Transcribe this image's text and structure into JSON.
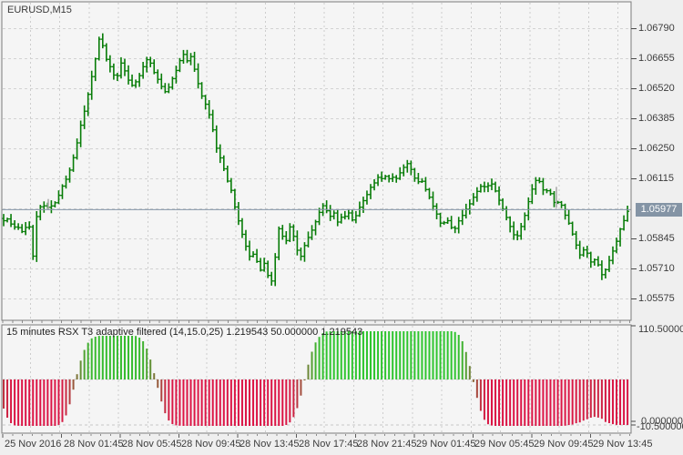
{
  "window": {
    "symbol_label": "EURUSD,M15"
  },
  "price_axis": {
    "tick_labels": [
      "1.06790",
      "1.06655",
      "1.06520",
      "1.06385",
      "1.06250",
      "1.06115",
      "1.05845",
      "1.05710",
      "1.05575"
    ],
    "current_price": "1.05977"
  },
  "time_axis": {
    "labels": [
      "25 Nov 2016",
      "28 Nov 01:45",
      "28 Nov 05:45",
      "28 Nov 09:45",
      "28 Nov 13:45",
      "28 Nov 17:45",
      "28 Nov 21:45",
      "29 Nov 01:45",
      "29 Nov 05:45",
      "29 Nov 09:45",
      "29 Nov 13:45"
    ]
  },
  "indicator": {
    "label": "15 minutes RSX T3 adaptive filtered (14,15.0,25) 1.219543 50.000000 1.219543",
    "axis_labels": {
      "top": "110.500000",
      "zero": "0.000000",
      "min": "-10.500000"
    }
  },
  "chart_data": [
    {
      "type": "ohlc-bar",
      "symbol": "EURUSD",
      "timeframe": "M15",
      "title": "EURUSD,M15",
      "bar_color": "#077c07",
      "gray_bar_color": "#ababab",
      "price_line_color": "#8495a7",
      "current_price": 1.05977,
      "ylim": [
        1.0551,
        1.06925
      ],
      "y_tick_step": 0.00135,
      "y_ticks": [
        1.0679,
        1.06655,
        1.0652,
        1.06385,
        1.0625,
        1.06115,
        1.0598,
        1.05845,
        1.0571,
        1.05575
      ],
      "x_tick_labels": [
        "25 Nov 2016",
        "28 Nov 01:45",
        "28 Nov 05:45",
        "28 Nov 09:45",
        "28 Nov 13:45",
        "28 Nov 17:45",
        "28 Nov 21:45",
        "29 Nov 01:45",
        "29 Nov 05:45",
        "29 Nov 09:45",
        "29 Nov 13:45"
      ],
      "grid": true,
      "close_path": [
        [
          2,
          1.0592
        ],
        [
          6,
          1.0594
        ],
        [
          10,
          1.05925
        ],
        [
          14,
          1.05905
        ],
        [
          18,
          1.05898
        ],
        [
          22,
          1.0589
        ],
        [
          26,
          1.0587
        ],
        [
          30,
          1.05915
        ],
        [
          33,
          1.0589
        ],
        [
          35,
          1.0566
        ],
        [
          38,
          1.0592
        ],
        [
          42,
          1.05965
        ],
        [
          46,
          1.0601
        ],
        [
          50,
          1.05985
        ],
        [
          54,
          1.0599
        ],
        [
          58,
          1.05995
        ],
        [
          62,
          1.06015
        ],
        [
          66,
          1.0606
        ],
        [
          70,
          1.06095
        ],
        [
          74,
          1.06125
        ],
        [
          78,
          1.0617
        ],
        [
          82,
          1.0623
        ],
        [
          86,
          1.06305
        ],
        [
          90,
          1.0638
        ],
        [
          94,
          1.0644
        ],
        [
          98,
          1.0652
        ],
        [
          102,
          1.066
        ],
        [
          106,
          1.0668
        ],
        [
          109,
          1.0675
        ],
        [
          111,
          1.0684
        ],
        [
          113,
          1.067
        ],
        [
          116,
          1.06655
        ],
        [
          120,
          1.0663
        ],
        [
          124,
          1.0659
        ],
        [
          128,
          1.06555
        ],
        [
          131,
          1.0663
        ],
        [
          134,
          1.0664
        ],
        [
          138,
          1.06585
        ],
        [
          142,
          1.06555
        ],
        [
          146,
          1.0653
        ],
        [
          150,
          1.06555
        ],
        [
          154,
          1.0659
        ],
        [
          158,
          1.0663
        ],
        [
          162,
          1.0666
        ],
        [
          166,
          1.0663
        ],
        [
          170,
          1.06585
        ],
        [
          174,
          1.06555
        ],
        [
          178,
          1.06525
        ],
        [
          182,
          1.06505
        ],
        [
          186,
          1.0653
        ],
        [
          190,
          1.0657
        ],
        [
          194,
          1.0661
        ],
        [
          198,
          1.0665
        ],
        [
          202,
          1.0668
        ],
        [
          206,
          1.06645
        ],
        [
          210,
          1.0667
        ],
        [
          214,
          1.066
        ],
        [
          218,
          1.0654
        ],
        [
          222,
          1.06485
        ],
        [
          226,
          1.0645
        ],
        [
          230,
          1.064
        ],
        [
          234,
          1.0633
        ],
        [
          238,
          1.0625
        ],
        [
          242,
          1.06205
        ],
        [
          246,
          1.0616
        ],
        [
          250,
          1.06105
        ],
        [
          254,
          1.0606
        ],
        [
          258,
          1.05985
        ],
        [
          262,
          1.05925
        ],
        [
          266,
          1.05865
        ],
        [
          270,
          1.05815
        ],
        [
          274,
          1.05765
        ],
        [
          278,
          1.0578
        ],
        [
          282,
          1.05745
        ],
        [
          286,
          1.05705
        ],
        [
          290,
          1.05735
        ],
        [
          294,
          1.05685
        ],
        [
          298,
          1.05655
        ],
        [
          301,
          1.05648
        ],
        [
          303,
          1.0584
        ],
        [
          306,
          1.0589
        ],
        [
          310,
          1.0586
        ],
        [
          314,
          1.05835
        ],
        [
          318,
          1.059
        ],
        [
          322,
          1.0586
        ],
        [
          326,
          1.05795
        ],
        [
          330,
          1.05765
        ],
        [
          334,
          1.0581
        ],
        [
          338,
          1.0585
        ],
        [
          342,
          1.0588
        ],
        [
          346,
          1.0592
        ],
        [
          350,
          1.0596
        ],
        [
          354,
          1.06
        ],
        [
          358,
          1.05975
        ],
        [
          362,
          1.05945
        ],
        [
          366,
          1.0597
        ],
        [
          370,
          1.05915
        ],
        [
          374,
          1.05945
        ],
        [
          378,
          1.0594
        ],
        [
          382,
          1.0597
        ],
        [
          386,
          1.05925
        ],
        [
          390,
          1.05945
        ],
        [
          394,
          1.0598
        ],
        [
          398,
          1.0601
        ],
        [
          402,
          1.0604
        ],
        [
          406,
          1.0607
        ],
        [
          410,
          1.0609
        ],
        [
          414,
          1.0613
        ],
        [
          418,
          1.0611
        ],
        [
          422,
          1.0613
        ],
        [
          426,
          1.06112
        ],
        [
          430,
          1.06128
        ],
        [
          434,
          1.0611
        ],
        [
          438,
          1.06132
        ],
        [
          442,
          1.0616
        ],
        [
          446,
          1.0619
        ],
        [
          450,
          1.0617
        ],
        [
          454,
          1.0613
        ],
        [
          458,
          1.0609
        ],
        [
          462,
          1.0612
        ],
        [
          466,
          1.0608
        ],
        [
          470,
          1.0605
        ],
        [
          474,
          1.0601
        ],
        [
          478,
          1.0597
        ],
        [
          482,
          1.0593
        ],
        [
          486,
          1.059
        ],
        [
          490,
          1.0594
        ],
        [
          494,
          1.0591
        ],
        [
          498,
          1.0588
        ],
        [
          502,
          1.05912
        ],
        [
          506,
          1.0594
        ],
        [
          510,
          1.0597
        ],
        [
          514,
          1.05992
        ],
        [
          518,
          1.0602
        ],
        [
          522,
          1.0605
        ],
        [
          526,
          1.06072
        ],
        [
          530,
          1.06092
        ],
        [
          534,
          1.06072
        ],
        [
          538,
          1.061
        ],
        [
          542,
          1.0608
        ],
        [
          546,
          1.0604
        ],
        [
          550,
          1.06
        ],
        [
          554,
          1.0596
        ],
        [
          558,
          1.0592
        ],
        [
          562,
          1.0588
        ],
        [
          566,
          1.0585
        ],
        [
          570,
          1.05872
        ],
        [
          574,
          1.0592
        ],
        [
          578,
          1.0598
        ],
        [
          582,
          1.0604
        ],
        [
          586,
          1.0609
        ],
        [
          590,
          1.0612
        ],
        [
          594,
          1.0609
        ],
        [
          598,
          1.0605
        ],
        [
          602,
          1.06072
        ],
        [
          606,
          1.0603
        ],
        [
          610,
          1.06
        ],
        [
          614,
          1.0602
        ],
        [
          618,
          1.0598
        ],
        [
          622,
          1.0594
        ],
        [
          626,
          1.059
        ],
        [
          630,
          1.0585
        ],
        [
          634,
          1.058
        ],
        [
          638,
          1.0576
        ],
        [
          642,
          1.0581
        ],
        [
          646,
          1.0577
        ],
        [
          650,
          1.0573
        ],
        [
          654,
          1.0576
        ],
        [
          658,
          1.0572
        ],
        [
          662,
          1.0567
        ],
        [
          666,
          1.0572
        ],
        [
          670,
          1.0576
        ],
        [
          674,
          1.058
        ],
        [
          678,
          1.0585
        ],
        [
          682,
          1.059
        ],
        [
          686,
          1.0594
        ],
        [
          690,
          1.05977
        ]
      ],
      "gray_bars": [
        [
          53,
          1.06025,
          1.05975
        ],
        [
          611,
          1.0608,
          1.05985
        ]
      ]
    },
    {
      "type": "histogram",
      "name": "RSX T3 adaptive filtered",
      "params": "(14,15.0,25)",
      "display_values": [
        "1.219543",
        "50.000000",
        "1.219543"
      ],
      "baseline": 50,
      "ylim": [
        -10.5,
        110.5
      ],
      "levels_dashed": [
        50,
        0
      ],
      "color_up": "#2ec52e",
      "color_down": "#dc1445",
      "envelope": [
        [
          0,
          30
        ],
        [
          4,
          18
        ],
        [
          8,
          8
        ],
        [
          12,
          2
        ],
        [
          16,
          -0.5
        ],
        [
          22,
          -1
        ],
        [
          60,
          -1
        ],
        [
          64,
          0
        ],
        [
          68,
          3
        ],
        [
          72,
          10
        ],
        [
          76,
          22
        ],
        [
          80,
          38
        ],
        [
          84,
          55
        ],
        [
          88,
          70
        ],
        [
          92,
          82
        ],
        [
          96,
          90
        ],
        [
          100,
          95
        ],
        [
          104,
          97
        ],
        [
          110,
          98
        ],
        [
          148,
          98
        ],
        [
          153,
          96
        ],
        [
          157,
          92
        ],
        [
          161,
          84
        ],
        [
          165,
          72
        ],
        [
          169,
          57
        ],
        [
          173,
          41
        ],
        [
          177,
          26
        ],
        [
          181,
          13
        ],
        [
          185,
          5
        ],
        [
          189,
          1
        ],
        [
          194,
          -0.5
        ],
        [
          200,
          -1
        ],
        [
          310,
          -1
        ],
        [
          315,
          0
        ],
        [
          319,
          3
        ],
        [
          323,
          9
        ],
        [
          327,
          19
        ],
        [
          331,
          33
        ],
        [
          335,
          50
        ],
        [
          339,
          67
        ],
        [
          343,
          81
        ],
        [
          347,
          91
        ],
        [
          351,
          97
        ],
        [
          355,
          101
        ],
        [
          360,
          103
        ],
        [
          498,
          103
        ],
        [
          502,
          101
        ],
        [
          506,
          96
        ],
        [
          510,
          86
        ],
        [
          514,
          72
        ],
        [
          518,
          55
        ],
        [
          522,
          37
        ],
        [
          526,
          21
        ],
        [
          530,
          9
        ],
        [
          534,
          2
        ],
        [
          538,
          -0.5
        ],
        [
          544,
          -1
        ],
        [
          618,
          -1
        ],
        [
          626,
          0
        ],
        [
          634,
          2
        ],
        [
          642,
          5
        ],
        [
          648,
          8
        ],
        [
          654,
          9
        ],
        [
          660,
          7
        ],
        [
          666,
          3
        ],
        [
          672,
          1
        ],
        [
          678,
          0
        ],
        [
          690,
          0
        ]
      ]
    }
  ]
}
